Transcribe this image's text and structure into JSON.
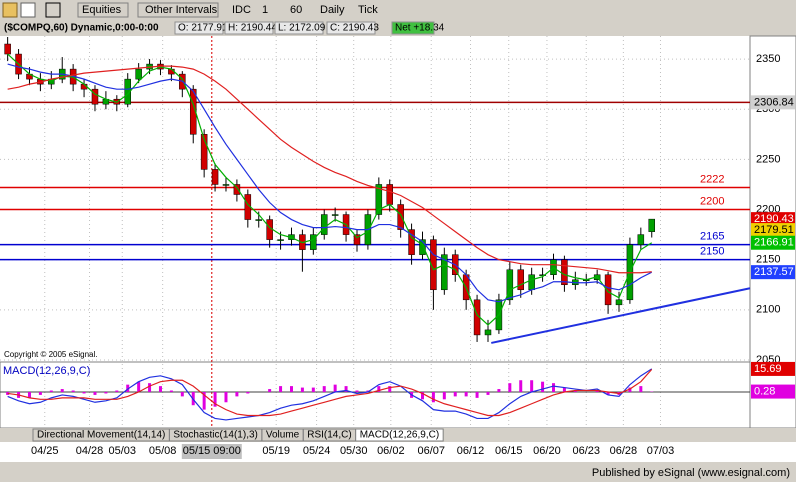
{
  "ui": {
    "toolbar": [
      "Equities",
      "Other Intervals",
      "IDC",
      "1",
      "60",
      "Daily",
      "Tick"
    ],
    "info": [
      "($COMPQ,60) Dynamic,0:00-0:00",
      "O: 2177.91",
      "H: 2190.44",
      "L: 2172.09",
      "C: 2190.43",
      "Net +18.34"
    ],
    "copyright": "Copyright © 2005 eSignal.",
    "tabs": [
      "Directional Movement(14,14)",
      "Stochastic(14(1),3)",
      "Volume",
      "RSI(14,C)",
      "MACD(12,26,9,C)"
    ],
    "footer": "Published by eSignal (www.esignal.com)"
  },
  "chart_data": {
    "type": "candlestick",
    "xlim": [
      -0.7,
      68
    ],
    "xticks": [
      {
        "value": 3.4,
        "label": "04/25"
      },
      {
        "value": 7.5,
        "label": "04/28"
      },
      {
        "value": 10.5,
        "label": "05/03"
      },
      {
        "value": 14.2,
        "label": "05/08"
      },
      {
        "value": 18.7,
        "label": "05/15 09:00"
      },
      {
        "value": 24.6,
        "label": "05/19"
      },
      {
        "value": 28.3,
        "label": "05/24"
      },
      {
        "value": 31.7,
        "label": "05/30"
      },
      {
        "value": 35.1,
        "label": "06/02"
      },
      {
        "value": 38.8,
        "label": "06/07"
      },
      {
        "value": 42.4,
        "label": "06/12"
      },
      {
        "value": 45.9,
        "label": "06/15"
      },
      {
        "value": 49.4,
        "label": "06/20"
      },
      {
        "value": 53,
        "label": "06/23"
      },
      {
        "value": 56.4,
        "label": "06/28"
      },
      {
        "value": 59.8,
        "label": "07/03"
      }
    ],
    "cursor_x": 18.7,
    "ylim": [
      2048,
      2373
    ],
    "yticks": [
      2050,
      2100,
      2150,
      2200,
      2250,
      2300,
      2350
    ],
    "up_color": "#00a000",
    "down_color": "#d00000",
    "ohlc": [
      [
        2365,
        2372,
        2348,
        2355
      ],
      [
        2355,
        2360,
        2330,
        2335
      ],
      [
        2335,
        2342,
        2324,
        2330
      ],
      [
        2330,
        2336,
        2318,
        2325
      ],
      [
        2325,
        2338,
        2320,
        2330
      ],
      [
        2330,
        2352,
        2326,
        2340
      ],
      [
        2340,
        2345,
        2318,
        2325
      ],
      [
        2325,
        2330,
        2312,
        2320
      ],
      [
        2320,
        2324,
        2298,
        2305
      ],
      [
        2305,
        2318,
        2300,
        2310
      ],
      [
        2310,
        2314,
        2298,
        2305
      ],
      [
        2305,
        2336,
        2302,
        2330
      ],
      [
        2330,
        2346,
        2326,
        2340
      ],
      [
        2340,
        2350,
        2335,
        2345
      ],
      [
        2345,
        2349,
        2334,
        2340
      ],
      [
        2340,
        2344,
        2328,
        2335
      ],
      [
        2335,
        2338,
        2312,
        2320
      ],
      [
        2320,
        2324,
        2266,
        2275
      ],
      [
        2275,
        2280,
        2232,
        2240
      ],
      [
        2240,
        2246,
        2218,
        2225
      ],
      [
        2225,
        2232,
        2218,
        2225
      ],
      [
        2225,
        2230,
        2208,
        2215
      ],
      [
        2215,
        2220,
        2182,
        2190
      ],
      [
        2190,
        2198,
        2182,
        2190
      ],
      [
        2190,
        2194,
        2162,
        2170
      ],
      [
        2170,
        2178,
        2160,
        2170
      ],
      [
        2170,
        2182,
        2164,
        2175
      ],
      [
        2175,
        2180,
        2138,
        2160
      ],
      [
        2160,
        2182,
        2155,
        2175
      ],
      [
        2175,
        2200,
        2170,
        2195
      ],
      [
        2195,
        2202,
        2188,
        2195
      ],
      [
        2195,
        2198,
        2168,
        2175
      ],
      [
        2175,
        2180,
        2158,
        2165
      ],
      [
        2165,
        2200,
        2160,
        2195
      ],
      [
        2195,
        2232,
        2190,
        2225
      ],
      [
        2225,
        2230,
        2198,
        2205
      ],
      [
        2205,
        2210,
        2172,
        2180
      ],
      [
        2180,
        2186,
        2145,
        2155
      ],
      [
        2155,
        2178,
        2150,
        2170
      ],
      [
        2170,
        2174,
        2100,
        2120
      ],
      [
        2120,
        2162,
        2115,
        2155
      ],
      [
        2155,
        2160,
        2128,
        2135
      ],
      [
        2135,
        2140,
        2100,
        2110
      ],
      [
        2110,
        2115,
        2068,
        2075
      ],
      [
        2075,
        2090,
        2068,
        2080
      ],
      [
        2080,
        2116,
        2076,
        2110
      ],
      [
        2110,
        2148,
        2105,
        2140
      ],
      [
        2140,
        2145,
        2112,
        2120
      ],
      [
        2120,
        2142,
        2115,
        2135
      ],
      [
        2135,
        2142,
        2128,
        2135
      ],
      [
        2135,
        2156,
        2130,
        2150
      ],
      [
        2150,
        2154,
        2118,
        2125
      ],
      [
        2125,
        2138,
        2120,
        2130
      ],
      [
        2130,
        2136,
        2124,
        2130
      ],
      [
        2130,
        2140,
        2126,
        2135
      ],
      [
        2135,
        2138,
        2096,
        2105
      ],
      [
        2105,
        2118,
        2098,
        2110
      ],
      [
        2110,
        2172,
        2106,
        2165
      ],
      [
        2165,
        2182,
        2160,
        2175
      ],
      [
        2177.91,
        2190.44,
        2172.09,
        2190.43
      ]
    ],
    "series": [
      {
        "color": "#00b000",
        "values": [
          2355,
          2345,
          2335,
          2330,
          2328,
          2333,
          2332,
          2325,
          2315,
          2310,
          2307,
          2315,
          2328,
          2338,
          2342,
          2340,
          2330,
          2305,
          2270,
          2245,
          2232,
          2222,
          2205,
          2195,
          2182,
          2175,
          2172,
          2167,
          2170,
          2182,
          2190,
          2185,
          2172,
          2178,
          2200,
          2205,
          2195,
          2172,
          2165,
          2140,
          2145,
          2140,
          2122,
          2095,
          2085,
          2095,
          2120,
          2125,
          2130,
          2133,
          2142,
          2135,
          2132,
          2130,
          2133,
          2118,
          2112,
          2138,
          2160,
          2166.91
        ]
      },
      {
        "color": "#2030e0",
        "values": [
          2345,
          2342,
          2340,
          2337,
          2335,
          2335,
          2333,
          2330,
          2326,
          2322,
          2320,
          2320,
          2322,
          2325,
          2328,
          2330,
          2328,
          2318,
          2300,
          2282,
          2265,
          2250,
          2235,
          2220,
          2207,
          2197,
          2190,
          2185,
          2182,
          2182,
          2183,
          2182,
          2180,
          2180,
          2185,
          2185,
          2182,
          2175,
          2168,
          2155,
          2150,
          2145,
          2135,
          2120,
          2110,
          2108,
          2112,
          2115,
          2120,
          2123,
          2128,
          2128,
          2127,
          2127,
          2128,
          2122,
          2120,
          2125,
          2132,
          2137.57
        ]
      },
      {
        "color": "#e02020",
        "values": [
          2320,
          2322,
          2325,
          2327,
          2330,
          2332,
          2334,
          2336,
          2337,
          2338,
          2339,
          2340,
          2341,
          2342,
          2343,
          2343,
          2342,
          2340,
          2335,
          2328,
          2320,
          2310,
          2300,
          2290,
          2280,
          2270,
          2262,
          2255,
          2248,
          2242,
          2237,
          2233,
          2228,
          2224,
          2221,
          2218,
          2214,
          2208,
          2202,
          2194,
          2186,
          2178,
          2170,
          2162,
          2155,
          2150,
          2148,
          2146,
          2145,
          2145,
          2145,
          2144,
          2143,
          2142,
          2141,
          2139,
          2137,
          2137,
          2137,
          2138
        ]
      }
    ],
    "levels": [
      {
        "value": 2306.84,
        "color": "#a00000",
        "boxed": true
      },
      {
        "value": 2222,
        "color": "#e00000"
      },
      {
        "value": 2200,
        "color": "#e00000"
      },
      {
        "value": 2165,
        "color": "#0000d0"
      },
      {
        "value": 2150,
        "color": "#0000d0"
      }
    ],
    "markers": [
      {
        "value": 2190.43,
        "color": "#e00000"
      },
      {
        "value": 2179.51,
        "color": "#f0d000"
      },
      {
        "value": 2166.91,
        "color": "#00c000"
      },
      {
        "value": 2137.57,
        "color": "#2040ff"
      }
    ],
    "trendline": {
      "x": [
        44.3,
        68
      ],
      "y": [
        2067,
        2121.5
      ],
      "color": "#2030e0"
    },
    "macd": {
      "title": "MACD(12,26,9,C)",
      "ylim": [
        -24.5,
        20.4
      ],
      "macd": [
        -3,
        -6,
        -8,
        -7,
        -4,
        -2,
        -3,
        -5,
        -7,
        -6,
        -4,
        2,
        7,
        10,
        11,
        9,
        5,
        -5,
        -14,
        -18,
        -19,
        -18,
        -17,
        -16,
        -14,
        -11,
        -9,
        -8,
        -6,
        -3,
        0,
        1,
        -1,
        0,
        5,
        7,
        4,
        -2,
        -6,
        -12,
        -13,
        -13,
        -15,
        -18,
        -18,
        -14,
        -8,
        -3,
        0,
        2,
        4,
        3,
        2,
        1,
        2,
        -2,
        -3,
        5,
        11,
        15.69
      ],
      "signal": [
        -1,
        -2,
        -4,
        -5,
        -5,
        -4,
        -4,
        -4,
        -5,
        -5,
        -5,
        -3,
        0,
        4,
        7,
        8,
        8,
        4,
        -2,
        -8,
        -12,
        -15,
        -16,
        -16,
        -16,
        -15,
        -13,
        -11,
        -9,
        -7,
        -5,
        -3,
        -2,
        -1,
        1,
        3,
        4,
        2,
        -1,
        -5,
        -8,
        -10,
        -12,
        -14,
        -16,
        -16,
        -14,
        -11,
        -8,
        -5,
        -2,
        0,
        1,
        1,
        1,
        0,
        -1,
        2,
        7,
        15.41
      ],
      "hist": [
        -2,
        -4,
        -4,
        -2,
        1,
        2,
        1,
        -1,
        -2,
        -1,
        1,
        5,
        7,
        6,
        4,
        1,
        -3,
        -9,
        -12,
        -10,
        -7,
        -3,
        -1,
        0,
        2,
        4,
        4,
        3,
        3,
        4,
        5,
        4,
        1,
        1,
        4,
        4,
        0,
        -4,
        -5,
        -7,
        -5,
        -3,
        -3,
        -4,
        -2,
        2,
        6,
        8,
        8,
        7,
        6,
        3,
        1,
        0,
        1,
        -2,
        -2,
        3,
        4,
        0.28
      ],
      "macd_color": "#2030e0",
      "signal_color": "#e02020",
      "hist_color": "#e000e0"
    }
  }
}
